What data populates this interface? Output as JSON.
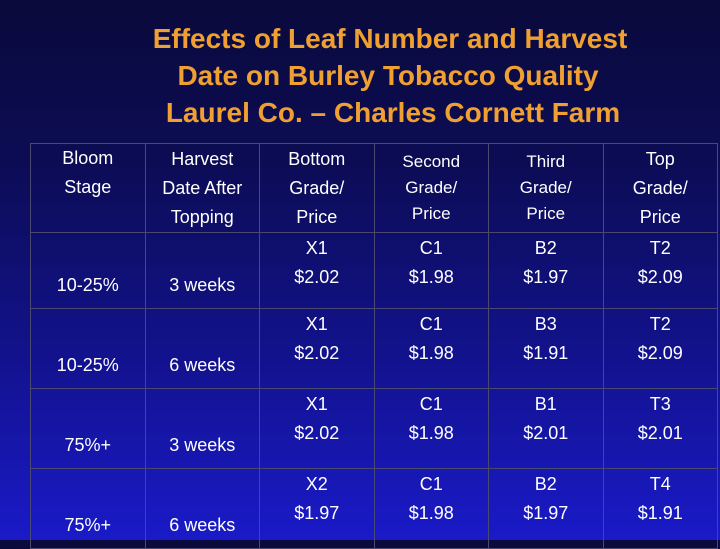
{
  "title": {
    "line1": "Effects of Leaf Number and Harvest",
    "line2": "Date on Burley Tobacco Quality",
    "line3": "Laurel Co. – Charles Cornett Farm"
  },
  "table": {
    "headers": [
      [
        "Bloom",
        "Stage"
      ],
      [
        "Harvest",
        "Date After",
        "Topping"
      ],
      [
        "Bottom",
        "Grade/",
        "Price"
      ],
      [
        "Second",
        "Grade/",
        "Price"
      ],
      [
        "Third",
        "Grade/",
        "Price"
      ],
      [
        "Top",
        "Grade/",
        "Price"
      ]
    ],
    "rows": [
      {
        "bloom": "10-25%",
        "harvest": "3 weeks",
        "bottom": [
          "X1",
          "$2.02"
        ],
        "second": [
          "C1",
          "$1.98"
        ],
        "third": [
          "B2",
          "$1.97"
        ],
        "top": [
          "T2",
          "$2.09"
        ]
      },
      {
        "bloom": "10-25%",
        "harvest": "6 weeks",
        "bottom": [
          "X1",
          "$2.02"
        ],
        "second": [
          "C1",
          "$1.98"
        ],
        "third": [
          "B3",
          "$1.91"
        ],
        "top": [
          "T2",
          "$2.09"
        ]
      },
      {
        "bloom": "75%+",
        "harvest": "3 weeks",
        "bottom": [
          "X1",
          "$2.02"
        ],
        "second": [
          "C1",
          "$1.98"
        ],
        "third": [
          "B1",
          "$2.01"
        ],
        "top": [
          "T3",
          "$2.01"
        ]
      },
      {
        "bloom": "75%+",
        "harvest": "6 weeks",
        "bottom": [
          "X2",
          "$1.97"
        ],
        "second": [
          "C1",
          "$1.98"
        ],
        "third": [
          "B2",
          "$1.97"
        ],
        "top": [
          "T4",
          "$1.91"
        ]
      }
    ]
  },
  "colors": {
    "title": "#f0a030",
    "text": "#ffffff",
    "background_top": "#0a0a3c",
    "background_bottom": "#1a1ac8"
  }
}
